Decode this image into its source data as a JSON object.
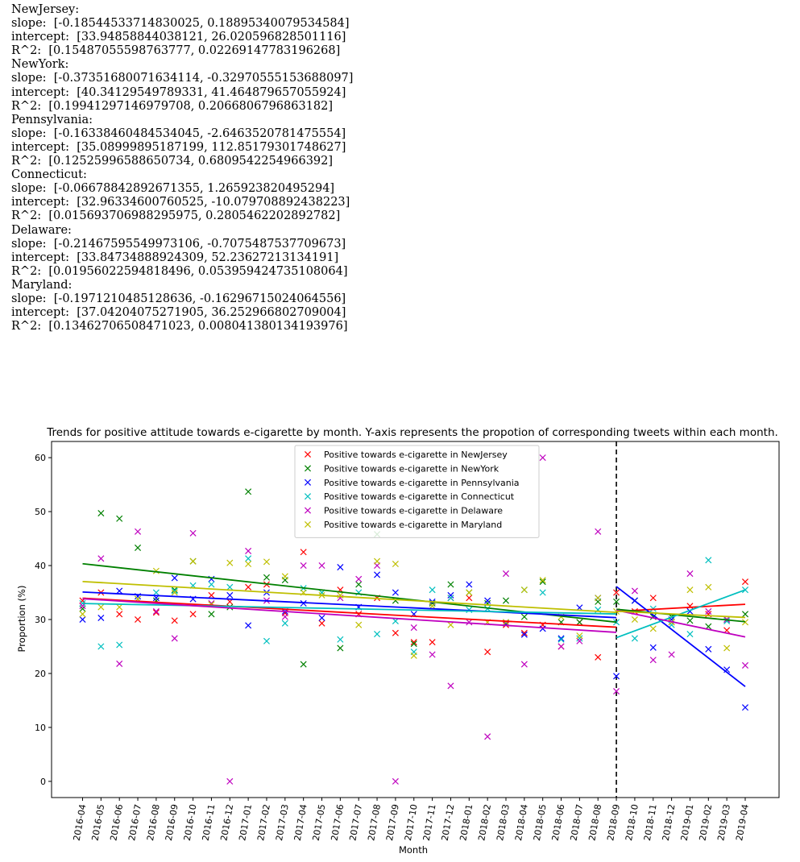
{
  "console": {
    "states": [
      {
        "name": "NewJersey:",
        "slope": "slope:  [-0.18544533714830025, 0.18895340079534584]",
        "intercept": "intercept:  [33.94858844038121, 26.020596828501116]",
        "r2": "R^2:  [0.15487055598763777, 0.02269147783196268]"
      },
      {
        "name": "NewYork:",
        "slope": "slope:  [-0.37351680071634114, -0.32970555153688097]",
        "intercept": "intercept:  [40.34129549789331, 41.464879657055924]",
        "r2": "R^2:  [0.19941297146979708, 0.2066806796863182]"
      },
      {
        "name": "Pennsylvania:",
        "slope": "slope:  [-0.16338460484534045, -2.6463520781475554]",
        "intercept": "intercept:  [35.08999895187199, 112.85179301748627]",
        "r2": "R^2:  [0.12525996588650734, 0.6809542254966392]"
      },
      {
        "name": "Connecticut:",
        "slope": "slope:  [-0.06678842892671355, 1.265923820495294]",
        "intercept": "intercept:  [32.96334600760525, -10.079708892438223]",
        "r2": "R^2:  [0.015693706988295975, 0.2805462202892782]"
      },
      {
        "name": "Delaware:",
        "slope": "slope:  [-0.21467595549973106, -0.7075487537709673]",
        "intercept": "intercept:  [33.84734888924309, 52.23627213134191]",
        "r2": "R^2:  [0.01956022594818496, 0.053959424735108064]"
      },
      {
        "name": "Maryland:",
        "slope": "slope:  [-0.1971210485128636, -0.16296715024064556]",
        "intercept": "intercept:  [37.04204075271905, 36.252966802709004]",
        "r2": "R^2:  [0.13462706508471023, 0.008041380134193976]"
      }
    ]
  },
  "chart_data": {
    "type": "scatter",
    "title": "Trends for positive attitude towards e-cigarette by month. Y-axis represents the propotion of corresponding tweets within each month.",
    "xlabel": "Month",
    "ylabel": "Proportion (%)",
    "ylim": [
      -3,
      63
    ],
    "yticks": [
      0,
      10,
      20,
      30,
      40,
      50,
      60
    ],
    "categories": [
      "2016-04",
      "2016-05",
      "2016-06",
      "2016-07",
      "2016-08",
      "2016-09",
      "2016-10",
      "2016-11",
      "2016-12",
      "2017-01",
      "2017-02",
      "2017-03",
      "2017-04",
      "2017-05",
      "2017-06",
      "2017-07",
      "2017-08",
      "2017-09",
      "2017-10",
      "2017-11",
      "2017-12",
      "2018-01",
      "2018-02",
      "2018-03",
      "2018-04",
      "2018-05",
      "2018-06",
      "2018-07",
      "2018-08",
      "2018-09",
      "2018-10",
      "2018-11",
      "2018-12",
      "2019-01",
      "2019-02",
      "2019-03",
      "2019-04"
    ],
    "split_marker": "2018-09",
    "split_style": "black dashed vertical line",
    "grid": false,
    "legend_position": "top-center",
    "series": [
      {
        "name": "Positive towards e-cigarette in NewJersey",
        "color": "#ff0000",
        "values": [
          33.5,
          35.0,
          31.0,
          30.0,
          31.3,
          29.8,
          31.0,
          34.5,
          33.3,
          36.0,
          36.5,
          31.2,
          42.5,
          29.3,
          35.5,
          31.0,
          34.0,
          27.5,
          25.8,
          25.8,
          34.0,
          34.0,
          24.0,
          29.0,
          27.5,
          29.0,
          25.0,
          29.5,
          23.0,
          35.0,
          31.5,
          34.0,
          29.5,
          32.5,
          31.0,
          28.0,
          37.0
        ],
        "fit": {
          "slope": [
            -0.18544533714830025,
            0.18895340079534584
          ],
          "intercept": [
            33.94858844038121,
            26.020596828501116
          ]
        }
      },
      {
        "name": "Positive towards e-cigarette in NewYork",
        "color": "#008000",
        "values": [
          32.0,
          49.7,
          48.7,
          43.3,
          33.5,
          35.5,
          40.8,
          31.0,
          32.3,
          53.7,
          37.8,
          37.3,
          21.7,
          35.0,
          24.7,
          36.5,
          45.8,
          33.5,
          25.5,
          33.0,
          36.5,
          35.0,
          33.0,
          33.5,
          30.5,
          37.0,
          29.5,
          29.5,
          33.3,
          33.3,
          33.5,
          30.5,
          30.5,
          29.8,
          28.7,
          30.0,
          31.0
        ],
        "fit": {
          "slope": [
            -0.37351680071634114,
            -0.32970555153688097
          ],
          "intercept": [
            40.34129549789331,
            41.464879657055924
          ]
        }
      },
      {
        "name": "Positive towards e-cigarette in Pennsylvania",
        "color": "#0000ff",
        "values": [
          30.0,
          30.3,
          35.3,
          34.3,
          34.0,
          37.7,
          33.8,
          37.5,
          34.5,
          28.9,
          35.0,
          31.5,
          33.0,
          30.3,
          39.7,
          32.3,
          38.3,
          35.0,
          31.0,
          33.3,
          34.5,
          36.5,
          33.5,
          29.3,
          27.2,
          28.3,
          26.5,
          32.2,
          34.0,
          19.5,
          33.5,
          24.8,
          30.0,
          31.5,
          24.5,
          20.7,
          13.7
        ],
        "fit": {
          "slope": [
            -0.16338460484534045,
            -2.6463520781475554
          ],
          "intercept": [
            35.08999895187199,
            112.85179301748627
          ]
        }
      },
      {
        "name": "Positive towards e-cigarette in Connecticut",
        "color": "#00bfbf",
        "values": [
          33.0,
          25.0,
          25.3,
          33.8,
          35.0,
          35.3,
          36.3,
          36.5,
          36.0,
          41.3,
          26.0,
          29.3,
          35.8,
          35.0,
          26.3,
          35.0,
          27.3,
          29.7,
          24.0,
          35.5,
          34.0,
          31.8,
          32.0,
          29.5,
          35.5,
          35.0,
          26.3,
          26.5,
          31.8,
          29.5,
          26.5,
          32.0,
          29.0,
          27.3,
          41.0,
          29.7,
          35.5
        ],
        "fit": {
          "slope": [
            -0.06678842892671355,
            1.265923820495294
          ],
          "intercept": [
            32.96334600760525,
            -10.079708892438223
          ]
        }
      },
      {
        "name": "Positive towards e-cigarette in Delaware",
        "color": "#bf00bf",
        "values": [
          32.5,
          41.3,
          21.8,
          46.3,
          31.5,
          26.5,
          46.0,
          33.0,
          0.0,
          42.7,
          33.5,
          30.5,
          40.0,
          40.0,
          34.0,
          37.5,
          40.0,
          0.0,
          28.5,
          23.5,
          17.7,
          29.5,
          8.3,
          38.5,
          21.7,
          60.0,
          25.0,
          26.0,
          46.3,
          16.7,
          35.3,
          22.5,
          23.5,
          38.5,
          31.5,
          30.0,
          21.5
        ],
        "fit": {
          "slope": [
            -0.21467595549973106,
            -0.7075487537709673
          ],
          "intercept": [
            33.84734888924309,
            52.23627213134191
          ]
        }
      },
      {
        "name": "Positive towards e-cigarette in Maryland",
        "color": "#bfbf00",
        "values": [
          31.0,
          32.3,
          32.3,
          33.8,
          39.0,
          35.0,
          40.8,
          32.8,
          40.5,
          40.3,
          40.7,
          38.0,
          35.0,
          34.5,
          34.5,
          29.0,
          40.8,
          40.3,
          23.3,
          32.5,
          29.0,
          35.0,
          29.5,
          29.5,
          35.5,
          37.3,
          30.5,
          27.0,
          34.0,
          31.5,
          30.0,
          28.3,
          29.5,
          35.5,
          36.0,
          24.7,
          29.5
        ],
        "fit": {
          "slope": [
            -0.1971210485128636,
            -0.16296715024064556
          ],
          "intercept": [
            37.04204075271905,
            36.252966802709004
          ]
        }
      }
    ]
  }
}
